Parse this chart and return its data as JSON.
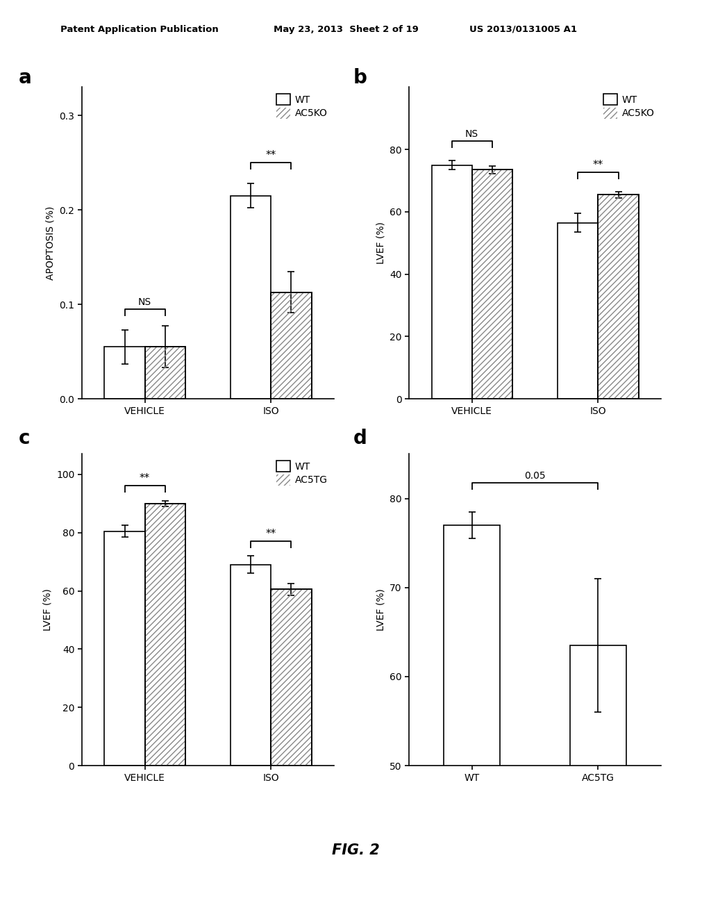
{
  "header_left": "Patent Application Publication",
  "header_mid": "May 23, 2013  Sheet 2 of 19",
  "header_right": "US 2013/0131005 A1",
  "fig_label": "FIG. 2",
  "panel_a": {
    "label": "a",
    "ylabel": "APOPTOSIS (%)",
    "groups": [
      "VEHICLE",
      "ISO"
    ],
    "wt_values": [
      0.055,
      0.215
    ],
    "wt_errors": [
      0.018,
      0.013
    ],
    "ko_values": [
      0.055,
      0.113
    ],
    "ko_errors": [
      0.022,
      0.022
    ],
    "ylim": [
      0,
      0.33
    ],
    "yticks": [
      0,
      0.1,
      0.2,
      0.3
    ],
    "legend_labels": [
      "WT",
      "AC5KO"
    ],
    "sig_vehicle": "NS",
    "sig_iso": "**"
  },
  "panel_b": {
    "label": "b",
    "ylabel": "LVEF (%)",
    "groups": [
      "VEHICLE",
      "ISO"
    ],
    "wt_values": [
      75.0,
      56.5
    ],
    "wt_errors": [
      1.5,
      3.0
    ],
    "ko_values": [
      73.5,
      65.5
    ],
    "ko_errors": [
      1.2,
      1.0
    ],
    "ylim": [
      0,
      100
    ],
    "yticks": [
      0,
      20,
      40,
      60,
      80
    ],
    "legend_labels": [
      "WT",
      "AC5KO"
    ],
    "sig_vehicle": "NS",
    "sig_iso": "**"
  },
  "panel_c": {
    "label": "c",
    "ylabel": "LVEF (%)",
    "groups": [
      "VEHICLE",
      "ISO"
    ],
    "wt_values": [
      80.5,
      69.0
    ],
    "wt_errors": [
      2.0,
      3.0
    ],
    "tg_values": [
      90.0,
      60.5
    ],
    "tg_errors": [
      1.0,
      2.0
    ],
    "ylim": [
      0,
      107
    ],
    "yticks": [
      0,
      20,
      40,
      60,
      80,
      100
    ],
    "legend_labels": [
      "WT",
      "AC5TG"
    ],
    "sig_vehicle": "**",
    "sig_iso": "**"
  },
  "panel_d": {
    "label": "d",
    "ylabel": "LVEF (%)",
    "groups": [
      "WT",
      "AC5TG"
    ],
    "wt_value": 77.0,
    "wt_error": 1.5,
    "tg_value": 63.5,
    "tg_error": 7.5,
    "ylim": [
      50,
      85
    ],
    "yticks": [
      50,
      60,
      70,
      80
    ],
    "sig": "0.05"
  },
  "bar_width": 0.32,
  "wt_color": "white",
  "hatch_color": "#888888",
  "hatch_pattern": "////",
  "edge_color": "black",
  "font_size": 10,
  "tick_font_size": 10,
  "label_font_size": 20,
  "bg_color": "white"
}
